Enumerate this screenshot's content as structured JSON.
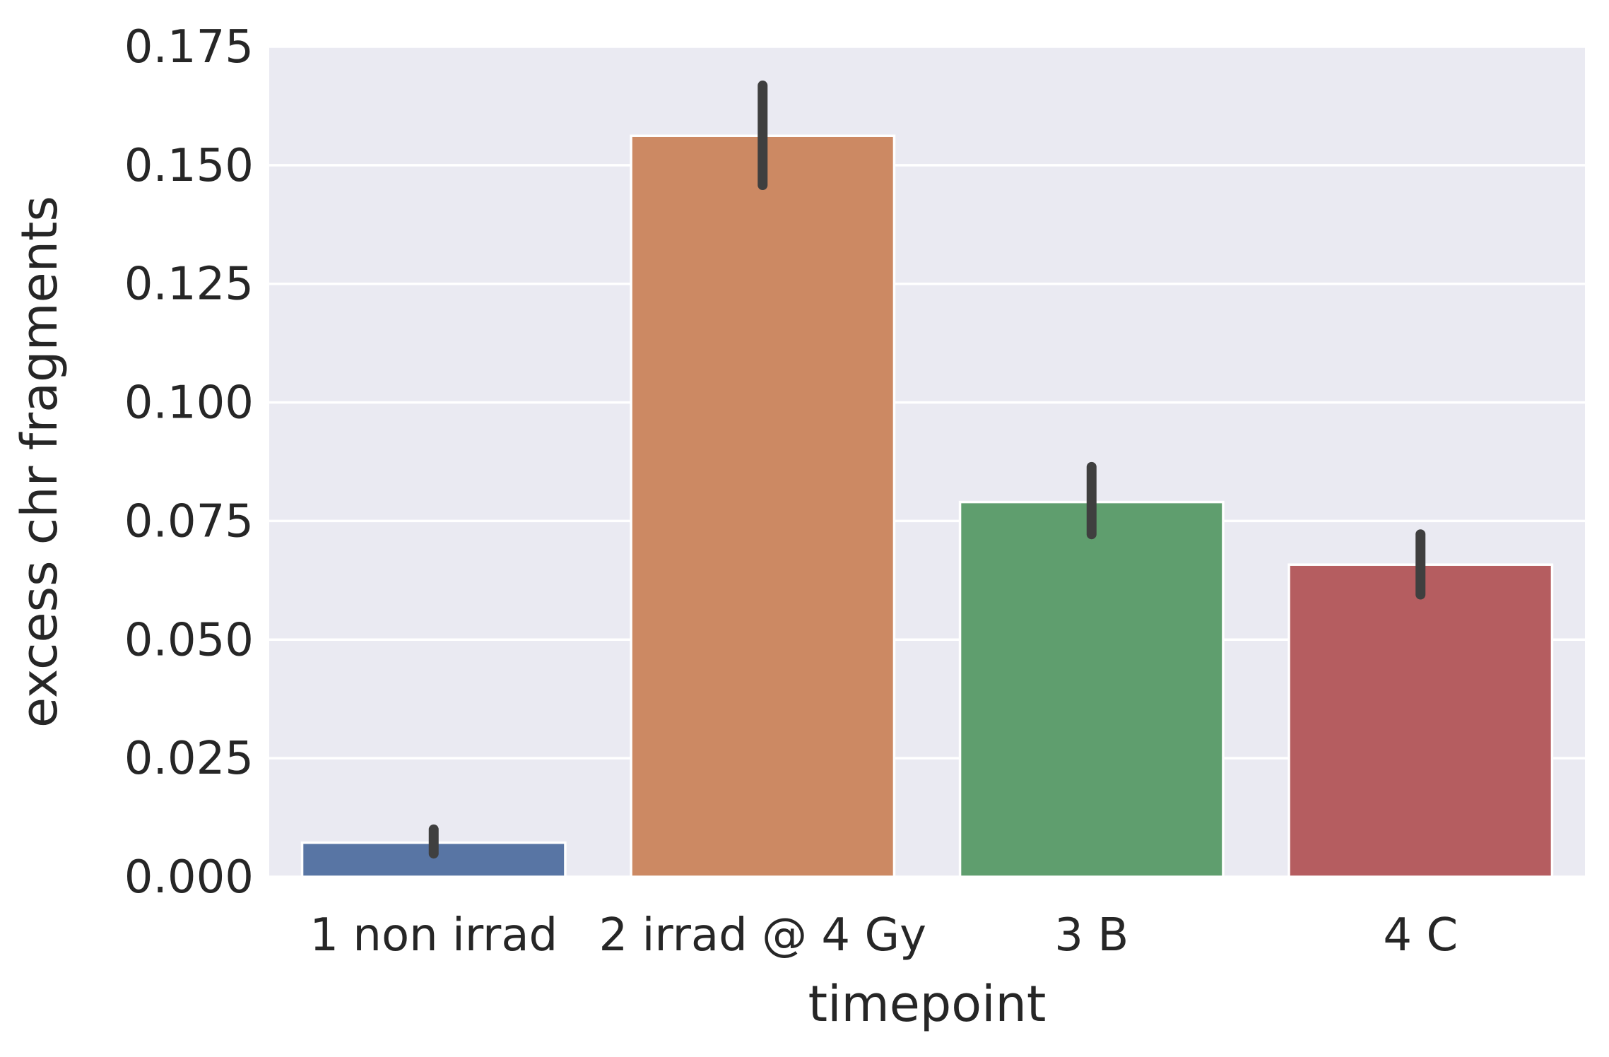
{
  "chart_data": {
    "type": "bar",
    "title": "",
    "xlabel": "timepoint",
    "ylabel": "excess chr fragments",
    "categories": [
      "1 non irrad",
      "2 irrad @ 4 Gy",
      "3 B",
      "4 C"
    ],
    "values": [
      0.0072,
      0.1562,
      0.079,
      0.0658
    ],
    "error_bars": [
      [
        0.0049,
        0.01
      ],
      [
        0.1458,
        0.1668
      ],
      [
        0.0722,
        0.0864
      ],
      [
        0.0595,
        0.0722
      ]
    ],
    "ylim": [
      0,
      0.175
    ],
    "yticks": [
      "0.000",
      "0.025",
      "0.050",
      "0.075",
      "0.100",
      "0.125",
      "0.150",
      "0.175"
    ],
    "ytick_values": [
      0,
      0.025,
      0.05,
      0.075,
      0.1,
      0.125,
      0.15,
      0.175
    ],
    "grid": true,
    "colors": [
      "#5875a4",
      "#cc8963",
      "#5f9e6e",
      "#b55d60"
    ],
    "background_color": "#eaeaf2",
    "errorbar_color": "#3f3f3f"
  }
}
